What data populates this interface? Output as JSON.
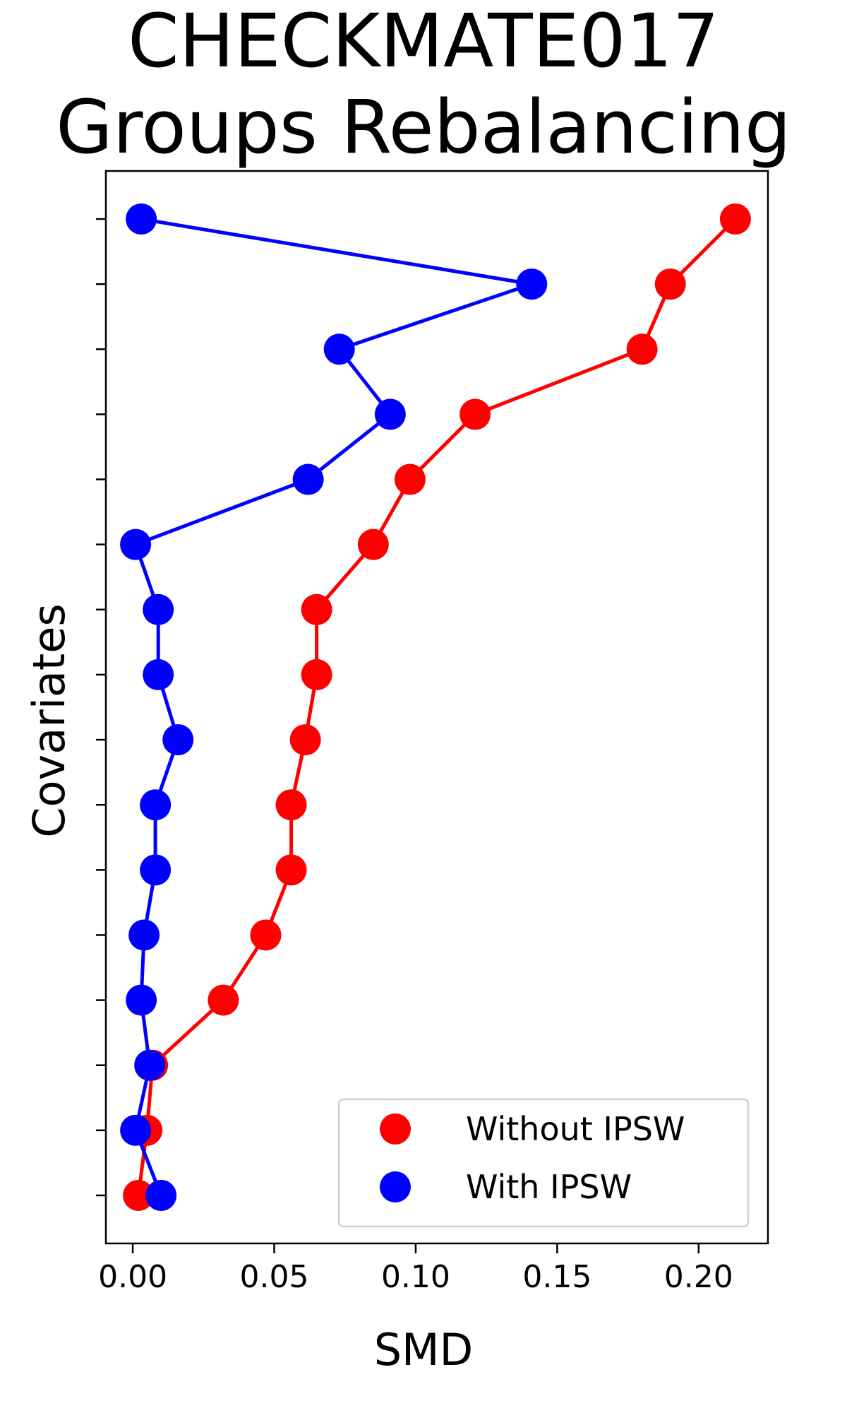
{
  "chart_data": {
    "type": "line",
    "title_lines": [
      "CHECKMATE017",
      "Groups Rebalancing"
    ],
    "xlabel": "SMD",
    "ylabel": "Covariates",
    "xlim": [
      -0.0095,
      0.2245
    ],
    "x_ticks": [
      0.0,
      0.05,
      0.1,
      0.15,
      0.2
    ],
    "x_tick_labels": [
      "0.00",
      "0.05",
      "0.10",
      "0.15",
      "0.20"
    ],
    "y_count": 16,
    "legend_position": "lower-right",
    "grid": false,
    "series": [
      {
        "name": "Without IPSW",
        "color": "#ff0000",
        "values": [
          0.213,
          0.19,
          0.18,
          0.121,
          0.098,
          0.085,
          0.065,
          0.065,
          0.061,
          0.056,
          0.056,
          0.047,
          0.032,
          0.007,
          0.005,
          0.002
        ]
      },
      {
        "name": "With IPSW",
        "color": "#0000ff",
        "values": [
          0.003,
          0.141,
          0.073,
          0.091,
          0.062,
          0.001,
          0.009,
          0.009,
          0.016,
          0.008,
          0.008,
          0.004,
          0.003,
          0.006,
          0.001,
          0.01
        ]
      }
    ]
  }
}
